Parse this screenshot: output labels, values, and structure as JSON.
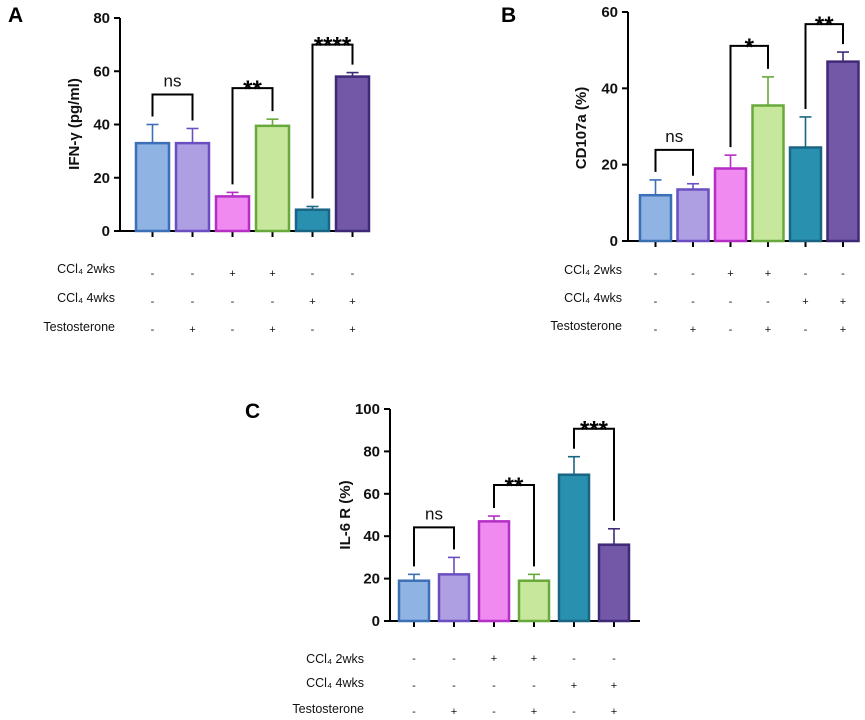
{
  "chart_data": [
    {
      "panel": "A",
      "type": "bar",
      "ylabel": "IFN-γ (pg/ml)",
      "ylim": [
        0,
        80
      ],
      "yticks": [
        0,
        20,
        40,
        60,
        80
      ],
      "values": [
        33,
        33,
        13,
        39.5,
        8,
        58
      ],
      "errors": [
        7,
        5.5,
        1.5,
        2.5,
        1.2,
        1.5
      ],
      "significance": [
        {
          "pair": [
            0,
            1
          ],
          "label": "ns"
        },
        {
          "pair": [
            2,
            3
          ],
          "label": "**"
        },
        {
          "pair": [
            4,
            5
          ],
          "label": "****"
        }
      ],
      "conditions": [
        {
          "label": "CCl₄ 2wks",
          "signs": [
            "-",
            "-",
            "+",
            "+",
            "-",
            "-"
          ]
        },
        {
          "label": "CCl₄ 4wks",
          "signs": [
            "-",
            "-",
            "-",
            "-",
            "+",
            "+"
          ]
        },
        {
          "label": "Testosterone",
          "signs": [
            "-",
            "+",
            "-",
            "+",
            "-",
            "+"
          ]
        }
      ]
    },
    {
      "panel": "B",
      "type": "bar",
      "ylabel": "CD107a (%)",
      "ylim": [
        0,
        60
      ],
      "yticks": [
        0,
        20,
        40,
        60
      ],
      "values": [
        12,
        13.5,
        19,
        35.5,
        24.5,
        47
      ],
      "errors": [
        4,
        1.5,
        3.5,
        7.5,
        8,
        2.5
      ],
      "significance": [
        {
          "pair": [
            0,
            1
          ],
          "label": "ns"
        },
        {
          "pair": [
            2,
            3
          ],
          "label": "*"
        },
        {
          "pair": [
            4,
            5
          ],
          "label": "**"
        }
      ],
      "conditions": [
        {
          "label": "CCl₄ 2wks",
          "signs": [
            "-",
            "-",
            "+",
            "+",
            "-",
            "-"
          ]
        },
        {
          "label": "CCl₄ 4wks",
          "signs": [
            "-",
            "-",
            "-",
            "-",
            "+",
            "+"
          ]
        },
        {
          "label": "Testosterone",
          "signs": [
            "-",
            "+",
            "-",
            "+",
            "-",
            "+"
          ]
        }
      ]
    },
    {
      "panel": "C",
      "type": "bar",
      "ylabel": "IL-6 R (%)",
      "ylim": [
        0,
        100
      ],
      "yticks": [
        0,
        20,
        40,
        60,
        80,
        100
      ],
      "values": [
        19,
        22,
        47,
        19,
        69,
        36
      ],
      "errors": [
        3,
        8,
        2.5,
        3,
        8.5,
        7.5
      ],
      "significance": [
        {
          "pair": [
            0,
            1
          ],
          "label": "ns"
        },
        {
          "pair": [
            2,
            3
          ],
          "label": "**"
        },
        {
          "pair": [
            4,
            5
          ],
          "label": "***"
        }
      ],
      "conditions": [
        {
          "label": "CCl₄ 2wks",
          "signs": [
            "-",
            "-",
            "+",
            "+",
            "-",
            "-"
          ]
        },
        {
          "label": "CCl₄ 4wks",
          "signs": [
            "-",
            "-",
            "-",
            "-",
            "+",
            "+"
          ]
        },
        {
          "label": "Testosterone",
          "signs": [
            "-",
            "+",
            "-",
            "+",
            "-",
            "+"
          ]
        }
      ]
    }
  ],
  "colors": {
    "fills": [
      "#8fb4e3",
      "#ad9fe1",
      "#f08af0",
      "#c6e79c",
      "#2a90b0",
      "#7358a8"
    ],
    "strokes": [
      "#3b6fb6",
      "#6b4fc2",
      "#b52fc6",
      "#67a93a",
      "#1b6584",
      "#3f2a78"
    ]
  }
}
